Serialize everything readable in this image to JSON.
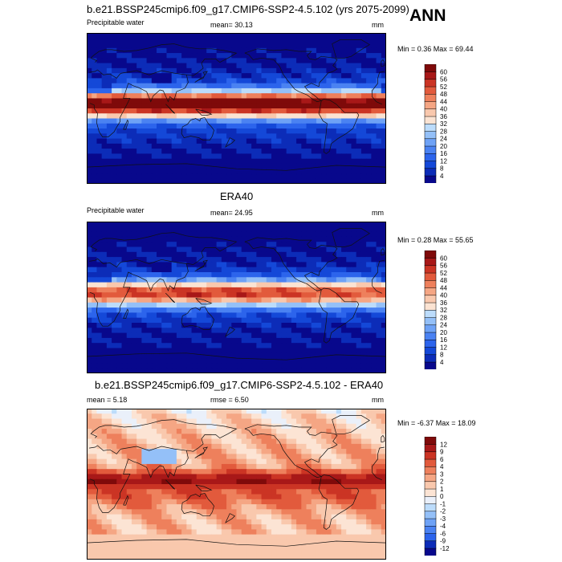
{
  "season": "ANN",
  "chart_data": [
    {
      "type": "heatmap",
      "title": "b.e21.BSSP245cmip6.f09_g17.CMIP6-SSP2-4.5.102 (yrs 2075-2099)",
      "left_label": "Precipitable water",
      "center_label": "mean=  30.13",
      "right_label": "mm",
      "minmax_label": "Min =   0.36 Max =  69.44",
      "stats": {
        "mean": 30.13,
        "min": 0.36,
        "max": 69.44
      },
      "units": "mm",
      "colorbar": {
        "levels": [
          "4",
          "8",
          "12",
          "16",
          "20",
          "24",
          "28",
          "32",
          "36",
          "40",
          "44",
          "48",
          "52",
          "56",
          "60"
        ],
        "colors": [
          "#08088c",
          "#0c2cb8",
          "#1448d8",
          "#2c64ec",
          "#4a82f2",
          "#6ea2f6",
          "#94c0f8",
          "#bcdcfb",
          "#fbe3d2",
          "#f9c8ad",
          "#f5a684",
          "#ee805c",
          "#e25a3c",
          "#cb3424",
          "#a81818",
          "#7f0a0a"
        ]
      },
      "tropics_strength": 1.0
    },
    {
      "type": "heatmap",
      "title": "ERA40",
      "left_label": "Precipitable water",
      "center_label": "mean=  24.95",
      "right_label": "mm",
      "minmax_label": "Min =   0.28 Max =  55.65",
      "stats": {
        "mean": 24.95,
        "min": 0.28,
        "max": 55.65
      },
      "units": "mm",
      "colorbar": {
        "levels": [
          "4",
          "8",
          "12",
          "16",
          "20",
          "24",
          "28",
          "32",
          "36",
          "40",
          "44",
          "48",
          "52",
          "56",
          "60"
        ],
        "colors": [
          "#08088c",
          "#0c2cb8",
          "#1448d8",
          "#2c64ec",
          "#4a82f2",
          "#6ea2f6",
          "#94c0f8",
          "#bcdcfb",
          "#fbe3d2",
          "#f9c8ad",
          "#f5a684",
          "#ee805c",
          "#e25a3c",
          "#cb3424",
          "#a81818",
          "#7f0a0a"
        ]
      },
      "tropics_strength": 0.78
    },
    {
      "type": "heatmap",
      "title": "b.e21.BSSP245cmip6.f09_g17.CMIP6-SSP2-4.5.102 - ERA40",
      "left_label": "mean =   5.18",
      "center_label": "rmse =   6.50",
      "right_label": "mm",
      "minmax_label": "Min =  -6.37 Max =  18.09",
      "stats": {
        "mean": 5.18,
        "rmse": 6.5,
        "min": -6.37,
        "max": 18.09
      },
      "units": "mm",
      "colorbar": {
        "levels": [
          "-12",
          "-9",
          "-6",
          "-4",
          "-3",
          "-2",
          "-1",
          "0",
          "1",
          "2",
          "3",
          "4",
          "6",
          "9",
          "12"
        ],
        "colors": [
          "#08088c",
          "#0c2cb8",
          "#2c64ec",
          "#4a82f2",
          "#6ea2f6",
          "#94c0f8",
          "#bcdcfb",
          "#eaf0fa",
          "#fce4d4",
          "#f9c8ad",
          "#f5a684",
          "#ee805c",
          "#e25a3c",
          "#cb3424",
          "#a81818",
          "#7f0a0a"
        ]
      },
      "tropics_strength": 0.55
    }
  ]
}
